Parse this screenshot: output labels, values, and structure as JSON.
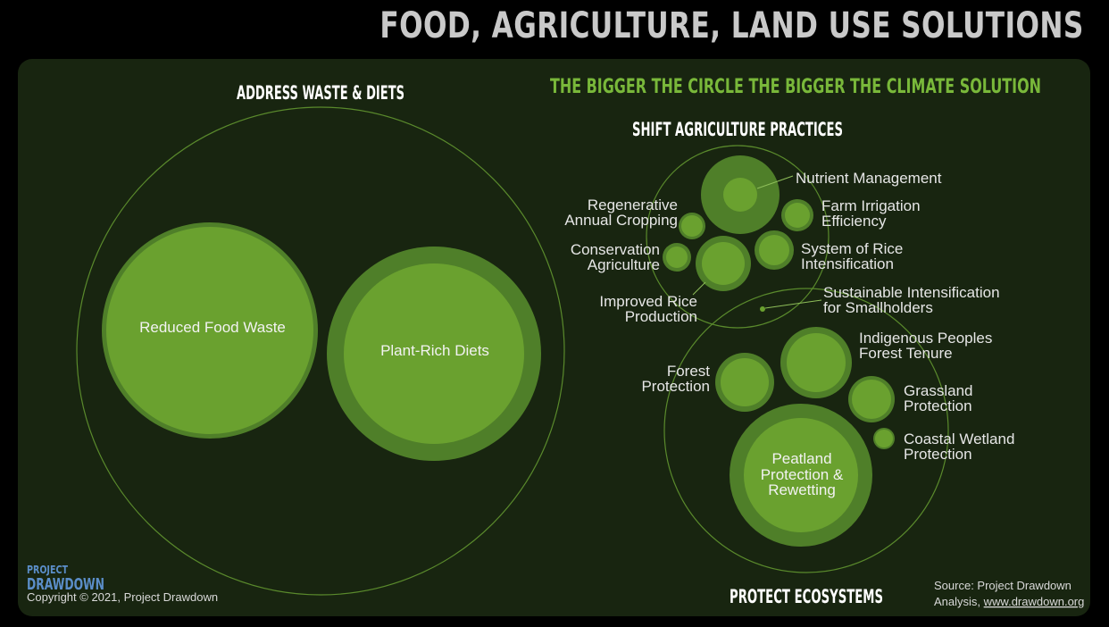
{
  "title": "FOOD, AGRICULTURE, LAND USE SOLUTIONS",
  "tagline": "THE BIGGER THE CIRCLE THE BIGGER THE CLIMATE SOLUTION",
  "groups": {
    "waste_diets": "ADDRESS WASTE & DIETS",
    "agriculture": "SHIFT AGRICULTURE PRACTICES",
    "ecosystems": "PROTECT ECOSYSTEMS"
  },
  "solutions": {
    "reduced_food_waste": "Reduced Food Waste",
    "plant_rich_diets": "Plant-Rich Diets",
    "nutrient_management": "Nutrient Management",
    "regenerative_1": "Regenerative",
    "regenerative_2": "Annual Cropping",
    "farm_irrigation_1": "Farm Irrigation",
    "farm_irrigation_2": "Efficiency",
    "conservation_1": "Conservation",
    "conservation_2": "Agriculture",
    "rice_intensification_1": "System of Rice",
    "rice_intensification_2": "Intensification",
    "improved_rice_1": "Improved Rice",
    "improved_rice_2": "Production",
    "sustainable_1": "Sustainable Intensification",
    "sustainable_2": "for Smallholders",
    "indigenous_1": "Indigenous Peoples",
    "indigenous_2": "Forest Tenure",
    "forest_1": "Forest",
    "forest_2": "Protection",
    "grassland_1": "Grassland",
    "grassland_2": "Protection",
    "coastal_1": "Coastal Wetland",
    "coastal_2": "Protection",
    "peatland_1": "Peatland",
    "peatland_2": "Protection &",
    "peatland_3": "Rewetting"
  },
  "footer": {
    "logo_top": "PROJECT",
    "logo_bottom": "DRAWDOWN",
    "copyright": "Copyright © 2021, Project Drawdown",
    "source_1": "Source: Project Drawdown",
    "source_2": "Analysis, ",
    "source_link": "www.drawdown.org"
  },
  "colors": {
    "background": "#000000",
    "panel": "#182510",
    "ring": "#4f7f29",
    "fill": "#6aa12f",
    "accent": "#79b83a"
  }
}
